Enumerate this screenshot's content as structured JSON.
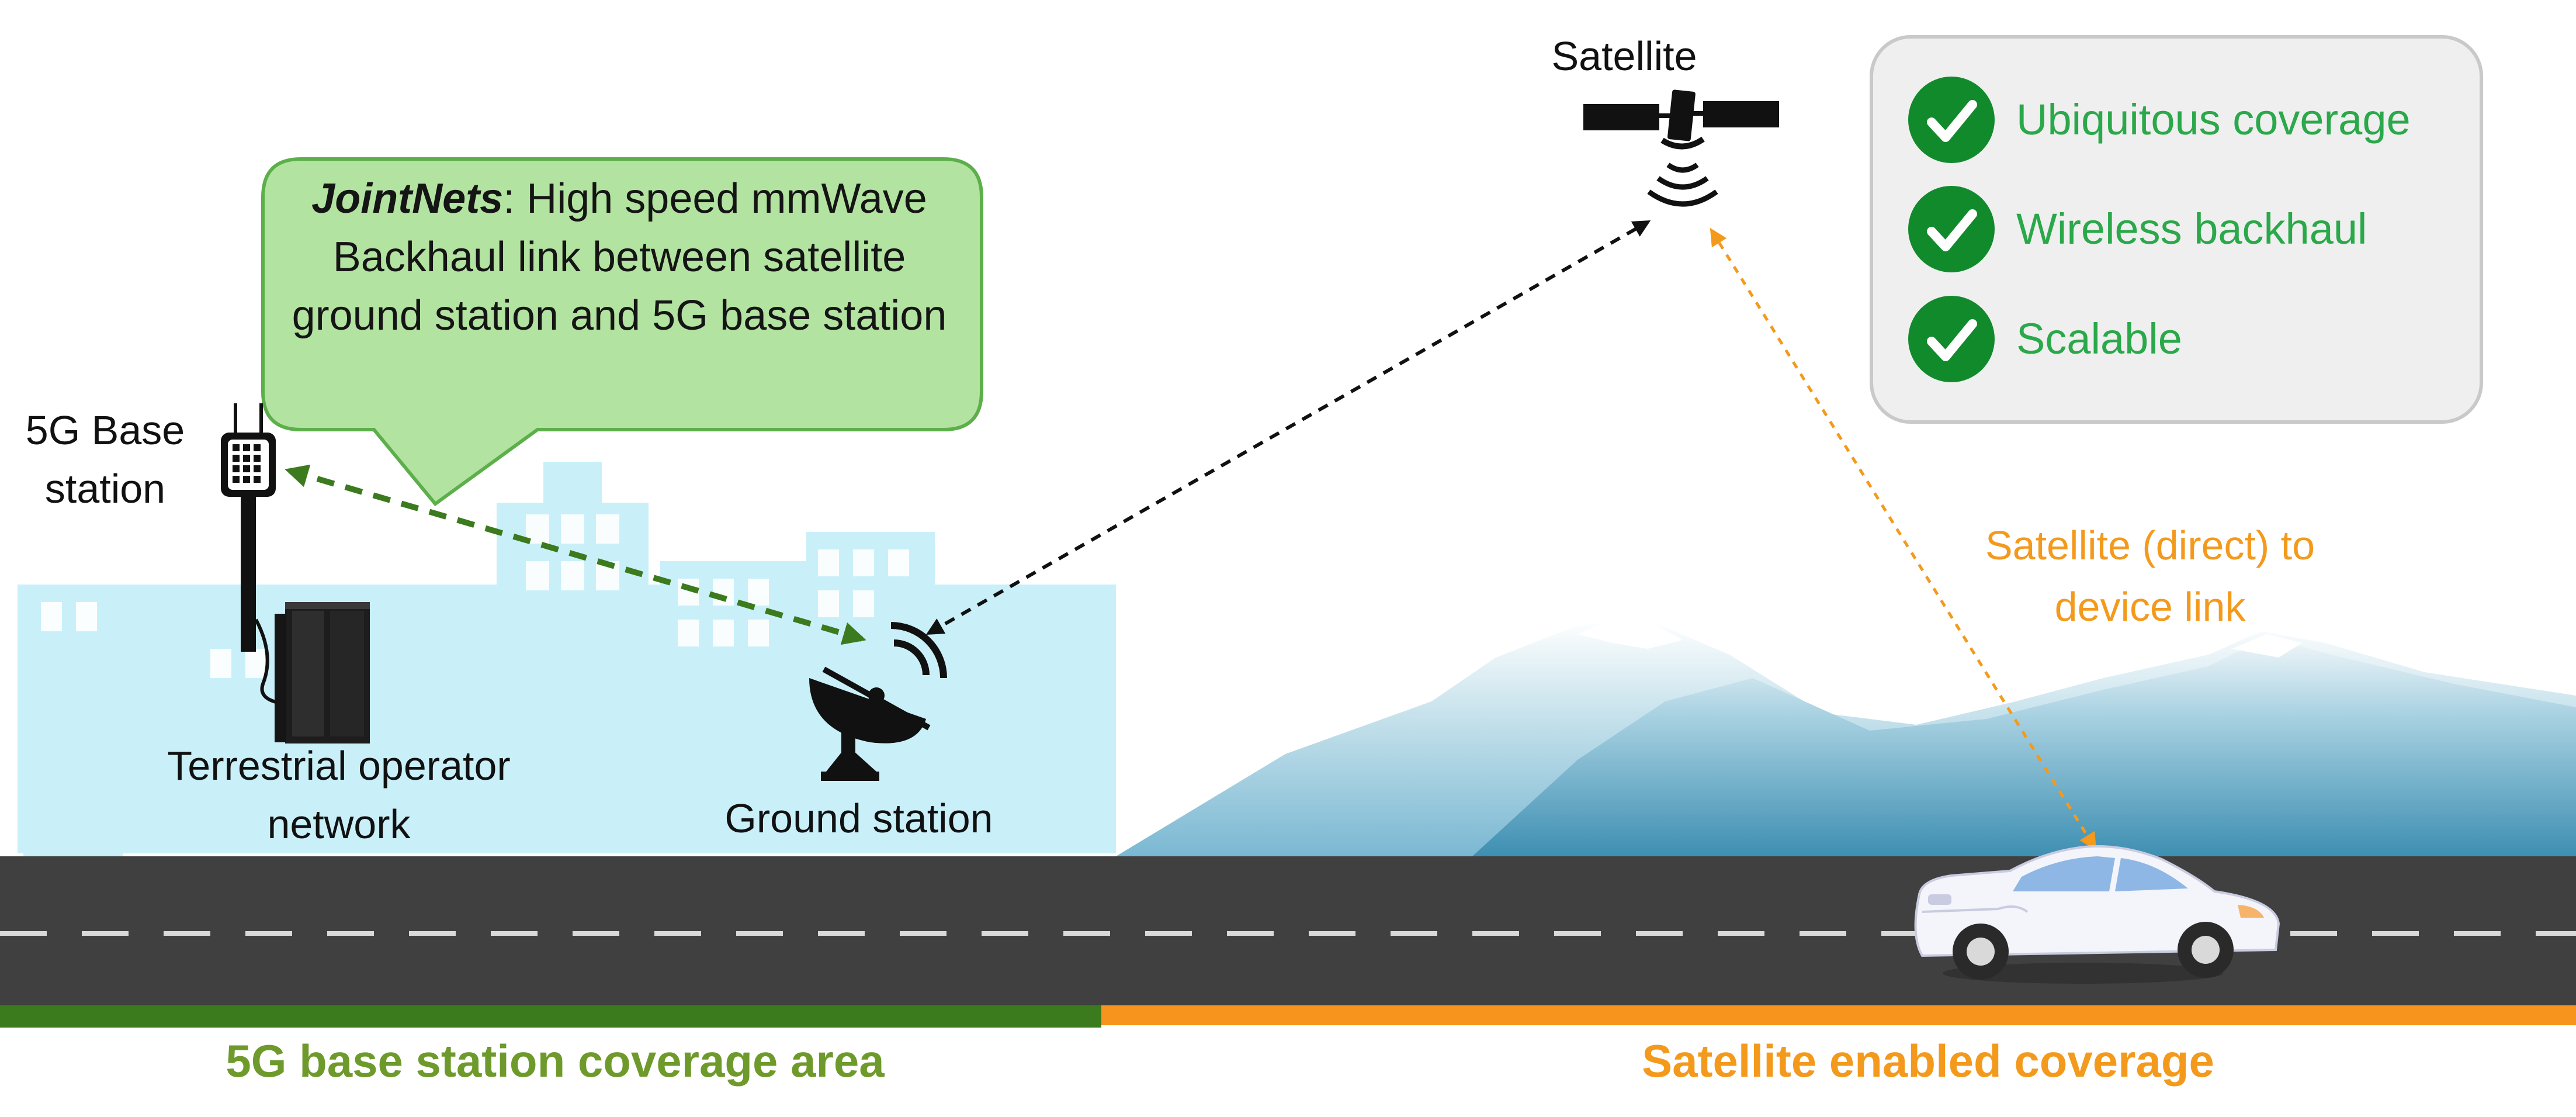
{
  "bubble": {
    "title": "JointNets",
    "text": ": High speed mmWave Backhaul link between satellite ground station and 5G base station"
  },
  "labels": {
    "satellite": "Satellite",
    "base_station_line1": "5G Base",
    "base_station_line2": "station",
    "terrestrial_line1": "Terrestrial operator",
    "terrestrial_line2": "network",
    "ground_station": "Ground station",
    "direct_link_line1": "Satellite (direct) to",
    "direct_link_line2": "device link"
  },
  "checklist": [
    {
      "label": "Ubiquitous coverage"
    },
    {
      "label": "Wireless backhaul"
    },
    {
      "label": "Scalable"
    }
  ],
  "coverage": {
    "left": "5G base station coverage area",
    "right": "Satellite enabled coverage"
  },
  "colors": {
    "bubble_fill": "#b3e3a0",
    "bubble_border": "#5caf4a",
    "city": "#c9f0f9",
    "road": "#404040",
    "green_link": "#3c7a1e",
    "orange_link": "#f39a1d",
    "left_coverage": "#3c7a1e",
    "right_coverage": "#f7941d",
    "check_green": "#118a2c"
  },
  "icons": [
    "satellite-icon",
    "wifi-signal-icon",
    "antenna-icon",
    "server-rack-icon",
    "satellite-dish-icon",
    "car-icon",
    "checkmark-icon"
  ]
}
